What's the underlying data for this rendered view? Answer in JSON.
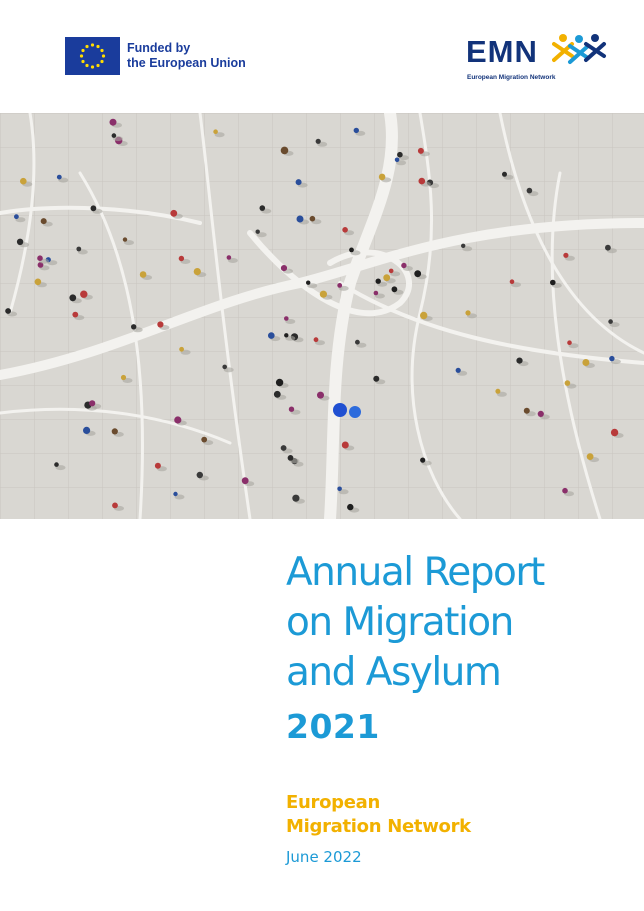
{
  "header": {
    "eu_logo": {
      "icon": "eu-flag-icon",
      "line1": "Funded by",
      "line2": "the European Union"
    },
    "emn_logo": {
      "word": "EMN",
      "subtitle": "European Migration Network",
      "icon": "people-figures-icon"
    }
  },
  "cover_image": {
    "icon": "aerial-crowd-photo"
  },
  "title": {
    "line1": "Annual Report",
    "line2": "on Migration",
    "line3": "and Asylum",
    "year": "2021"
  },
  "publisher": {
    "line1": "European",
    "line2": "Migration Network"
  },
  "date": "June 2022",
  "colors": {
    "title_blue": "#1c9ad6",
    "publisher_yellow": "#f2b100",
    "eu_blue": "#1a3c9c",
    "emn_navy": "#12337a"
  }
}
